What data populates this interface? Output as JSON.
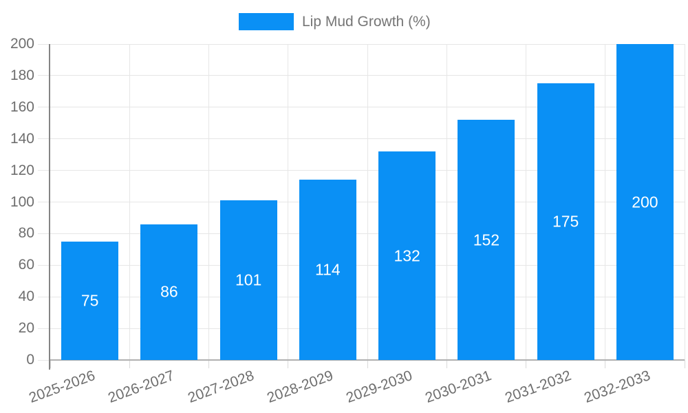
{
  "chart_data": {
    "type": "bar",
    "title": "Lip Mud Growth (%)",
    "legend": {
      "label": "Lip Mud Growth (%)",
      "position": "top"
    },
    "categories": [
      "2025-2026",
      "2026-2027",
      "2027-2028",
      "2028-2029",
      "2029-2030",
      "2030-2031",
      "2031-2032",
      "2032-2033"
    ],
    "series": [
      {
        "name": "Lip Mud Growth (%)",
        "values": [
          75,
          86,
          101,
          114,
          132,
          152,
          175,
          200
        ]
      }
    ],
    "xlabel": "",
    "ylabel": "",
    "ylim": [
      0,
      200
    ],
    "yticks": [
      0,
      20,
      40,
      60,
      80,
      100,
      120,
      140,
      160,
      180,
      200
    ],
    "grid": true,
    "value_labels_inside_bars": true,
    "colors": {
      "bar": "#0a90f5",
      "value_label": "#ffffff",
      "axis_text": "#6e6e6e",
      "legend_text": "#757575",
      "gridline": "#e6e6e6",
      "tick": "#d9d9d9",
      "baseline": "#b0b0b0",
      "y_axis_line": "#848484"
    }
  }
}
